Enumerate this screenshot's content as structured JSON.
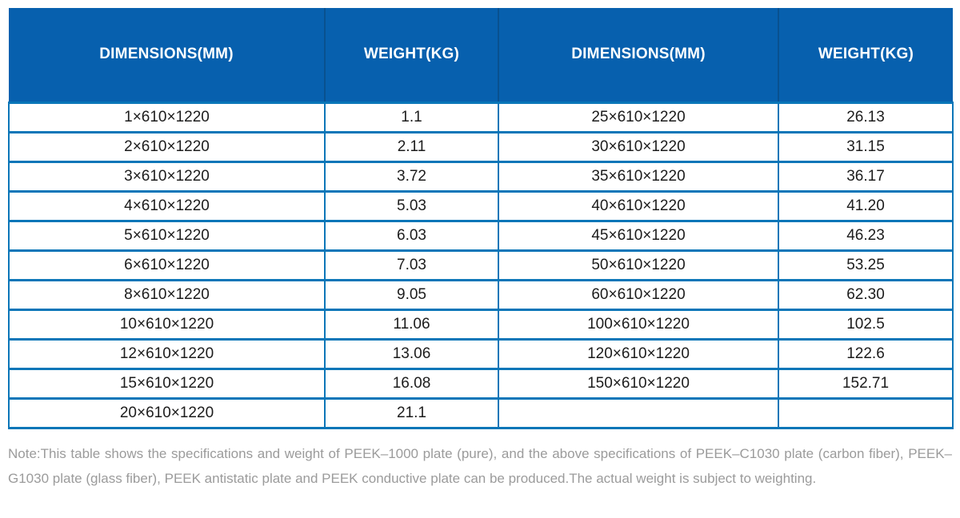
{
  "colors": {
    "header_bg": "#0760ae",
    "header_divider": "#09518f",
    "border": "#0a76b8",
    "body_text": "#1c1c1c",
    "header_text": "#ffffff",
    "note_text": "#9b9b9b"
  },
  "table": {
    "columns": [
      {
        "label": "DIMENSIONS(MM)"
      },
      {
        "label": "WEIGHT(KG)"
      },
      {
        "label": "DIMENSIONS(MM)"
      },
      {
        "label": "WEIGHT(KG)"
      }
    ],
    "rows": [
      [
        "1×610×1220",
        "1.1",
        "25×610×1220",
        "26.13"
      ],
      [
        "2×610×1220",
        "2.11",
        "30×610×1220",
        "31.15"
      ],
      [
        "3×610×1220",
        "3.72",
        "35×610×1220",
        "36.17"
      ],
      [
        "4×610×1220",
        "5.03",
        "40×610×1220",
        "41.20"
      ],
      [
        "5×610×1220",
        "6.03",
        "45×610×1220",
        "46.23"
      ],
      [
        "6×610×1220",
        "7.03",
        "50×610×1220",
        "53.25"
      ],
      [
        "8×610×1220",
        "9.05",
        "60×610×1220",
        "62.30"
      ],
      [
        "10×610×1220",
        "11.06",
        "100×610×1220",
        "102.5"
      ],
      [
        "12×610×1220",
        "13.06",
        "120×610×1220",
        "122.6"
      ],
      [
        "15×610×1220",
        "16.08",
        "150×610×1220",
        "152.71"
      ],
      [
        "20×610×1220",
        "21.1",
        "",
        ""
      ]
    ]
  },
  "note": {
    "text": "Note:This table shows the specifications and weight of PEEK–1000 plate (pure), and the above specifications of PEEK–C1030 plate (carbon fiber), PEEK–G1030 plate (glass fiber), PEEK antistatic plate and PEEK conductive plate can be produced.The actual weight is subject to weighting."
  }
}
